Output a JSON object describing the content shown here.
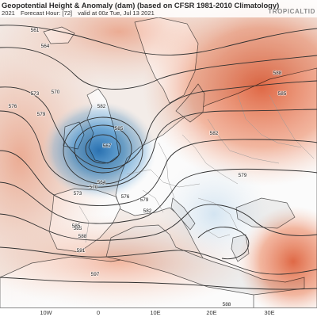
{
  "header": {
    "title": "Geopotential Height & Anomaly (dam) (based on CFSR 1981-2010 Climatology)",
    "run": "2021",
    "forecast_hour": "Forecast Hour: [72]",
    "valid": "valid at 00z Tue, Jul 13 2021",
    "brand": "TROPICALTID"
  },
  "contour_labels": [
    "561",
    "564",
    "570",
    "573",
    "576",
    "579",
    "582",
    "585",
    "567",
    "564",
    "570",
    "573",
    "576",
    "579",
    "582",
    "585",
    "588",
    "591",
    "597",
    "585",
    "588",
    "579",
    "582",
    "585",
    "588"
  ],
  "longitude_labels": [
    "10W",
    "0",
    "10E",
    "20E",
    "30E"
  ],
  "colors": {
    "ocean": "#f2f2f2",
    "land": "#ffffff",
    "warm_anomaly": "#e8643c",
    "cold_anomaly": "#2d7fc1",
    "contour": "#303030",
    "border": "#9a9a9a"
  }
}
